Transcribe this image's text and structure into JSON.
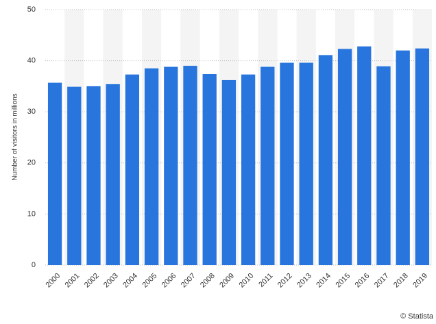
{
  "chart_data": {
    "type": "bar",
    "y_label": "Number of visitors in millions",
    "credit": "© Statista",
    "categories": [
      "2000",
      "2001",
      "2002",
      "2003",
      "2004",
      "2005",
      "2006",
      "2007",
      "2008",
      "2009",
      "2010",
      "2011",
      "2012",
      "2013",
      "2014",
      "2015",
      "2016",
      "2017",
      "2018",
      "2019"
    ],
    "values": [
      35.7,
      34.9,
      35.0,
      35.4,
      37.3,
      38.5,
      38.8,
      39.0,
      37.4,
      36.2,
      37.3,
      38.8,
      39.6,
      39.6,
      41.1,
      42.3,
      42.8,
      38.9,
      42.0,
      42.4
    ],
    "color": "#2875de",
    "ylim": [
      0,
      50
    ],
    "yticks": [
      0,
      10,
      20,
      30,
      40,
      50
    ],
    "grid": true
  }
}
